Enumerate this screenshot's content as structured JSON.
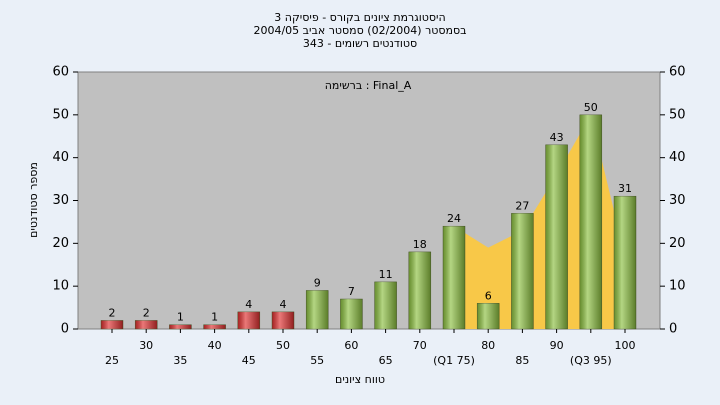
{
  "chart_data": {
    "type": "bar",
    "title_lines": [
      "היסטוגרמת ציונים בקורס - פיסיקה 3",
      "בסמסטר  (02/2004)  סמסטר אביב 2004/05",
      "סטודנטים רשומים - 343"
    ],
    "annotation": "ברשימה : Final_A",
    "y_label": "מספר סטודנטים",
    "x_label": "טווח ציונים",
    "categories": [
      "25",
      "30",
      "35",
      "40",
      "45",
      "50",
      "55",
      "60",
      "65",
      "70",
      "(Q1 75)",
      "80",
      "85",
      "90",
      "(Q3 95)",
      "100"
    ],
    "series": [
      {
        "type": "bar",
        "colors": [
          "#e03030",
          "#e03030",
          "#e03030",
          "#e03030",
          "#e03030",
          "#e03030",
          "#8cc040",
          "#8cc040",
          "#8cc040",
          "#8cc040",
          "#8cc040",
          "#8cc040",
          "#8cc040",
          "#8cc040",
          "#8cc040",
          "#8cc040"
        ],
        "values": [
          2,
          2,
          1,
          1,
          4,
          4,
          9,
          7,
          11,
          18,
          24,
          6,
          27,
          43,
          50,
          31
        ]
      },
      {
        "type": "area",
        "color": "#f8c848",
        "values": [
          null,
          null,
          null,
          null,
          null,
          null,
          null,
          null,
          null,
          null,
          24,
          19,
          23,
          36,
          50,
          17
        ]
      }
    ],
    "ylim": [
      0,
      60
    ],
    "yticks": [
      0,
      10,
      20,
      30,
      40,
      50,
      60
    ],
    "y2lim": [
      0,
      60
    ],
    "y2ticks": [
      0,
      10,
      20,
      30,
      40,
      50,
      60
    ],
    "grid": false
  }
}
